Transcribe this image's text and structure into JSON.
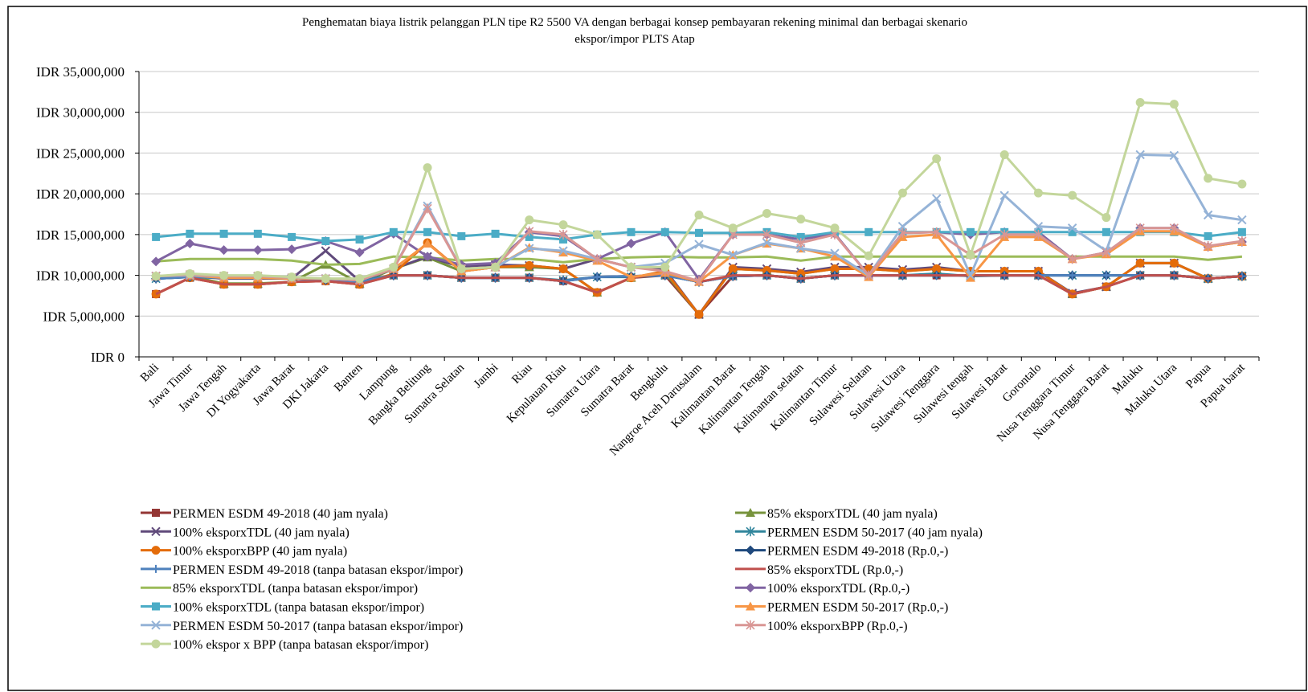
{
  "chart_data": {
    "type": "line",
    "title": [
      "Penghematan  biaya  listrik  pelanggan  PLN  tipe  R2  5500 VA dengan  berbagai  konsep pembayaran  rekening  minimal  dan berbagai  skenario",
      "ekspor/impor  PLTS Atap"
    ],
    "categories": [
      "Bali",
      "Jawa Timur",
      "Jawa Tengah",
      "DI Yogyakarta",
      "Jawa Barat",
      "DKI Jakarta",
      "Banten",
      "Lampung",
      "Bangka Belitung",
      "Sumatra Selatan",
      "Jambi",
      "Riau",
      "Kepulauan Riau",
      "Sumatra Utara",
      "Sumatra Barat",
      "Bengkulu",
      "Nangroe Aceh Darusalam",
      "Kalimantan Barat",
      "Kalimantan Tengah",
      "Kalimantan selatan",
      "Kalimantan Timur",
      "Sulawesi Selatan",
      "Sulawesi Utara",
      "Sulawesi Tenggara",
      "Sulawesi tengah",
      "Sulawesi Barat",
      "Gorontalo",
      "Nusa Tenggara Timur",
      "Nusa Tenggara Barat",
      "Maluku",
      "Maluku Utara",
      "Papua",
      "Papua barat"
    ],
    "ylim": [
      0,
      35000000
    ],
    "yticks": [
      {
        "value": 0,
        "label": "IDR 0"
      },
      {
        "value": 5000000,
        "label": "IDR 5,000,000"
      },
      {
        "value": 10000000,
        "label": "IDR 10,000,000"
      },
      {
        "value": 15000000,
        "label": "IDR 15,000,000"
      },
      {
        "value": 20000000,
        "label": "IDR 20,000,000"
      },
      {
        "value": 25000000,
        "label": "IDR 25,000,000"
      },
      {
        "value": 30000000,
        "label": "IDR 30,000,000"
      },
      {
        "value": 35000000,
        "label": "IDR 35,000,000"
      }
    ],
    "grid": true,
    "legend": "bottom",
    "series": [
      {
        "name": "PERMEN ESDM 49-2018 (40 jam nyala)",
        "color": "#943634",
        "marker": "square",
        "values": [
          7700000.0,
          9700000.0,
          8900000.0,
          8900000.0,
          9200000.0,
          9300000.0,
          8900000.0,
          10000000.0,
          10000000.0,
          9700000.0,
          9700000.0,
          9700000.0,
          9300000.0,
          7900000.0,
          9700000.0,
          10000000.0,
          5200000.0,
          9900000.0,
          10000000.0,
          9600000.0,
          10000000.0,
          10000000.0,
          10000000.0,
          10000000.0,
          10000000.0,
          10000000.0,
          10000000.0,
          7700000.0,
          8600000.0,
          10000000.0,
          10000000.0,
          9600000.0,
          9900000.0
        ]
      },
      {
        "name": "85% eksporxTDL (40 jam nyala)",
        "color": "#77933c",
        "marker": "triangle",
        "values": [
          9900000.0,
          9900000.0,
          9000000.0,
          9000000.0,
          9200000.0,
          11300000.0,
          9000000.0,
          10800000.0,
          12200000.0,
          10500000.0,
          11000000.0,
          11000000.0,
          10800000.0,
          7900000.0,
          9700000.0,
          10300000.0,
          5200000.0,
          10800000.0,
          10600000.0,
          10200000.0,
          10800000.0,
          10800000.0,
          10500000.0,
          10800000.0,
          10500000.0,
          10500000.0,
          10500000.0,
          7700000.0,
          8600000.0,
          11500000.0,
          11500000.0,
          9600000.0,
          9900000.0
        ]
      },
      {
        "name": "100% eksporxTDL (40 jam nyala)",
        "color": "#604a7b",
        "marker": "x",
        "values": [
          9900000.0,
          9900000.0,
          9600000.0,
          9600000.0,
          9600000.0,
          13000000.0,
          9300000.0,
          10800000.0,
          12300000.0,
          11000000.0,
          11300000.0,
          11200000.0,
          10800000.0,
          12000000.0,
          11000000.0,
          10700000.0,
          5200000.0,
          11000000.0,
          10800000.0,
          10400000.0,
          11000000.0,
          11000000.0,
          10700000.0,
          11000000.0,
          10500000.0,
          10500000.0,
          10500000.0,
          7800000.0,
          8600000.0,
          11500000.0,
          11500000.0,
          9600000.0,
          9900000.0
        ]
      },
      {
        "name": "PERMEN ESDM 50-2017 (40 jam nyala)",
        "color": "#31859c",
        "marker": "star",
        "values": [
          9600000.0,
          9800000.0,
          9700000.0,
          9700000.0,
          9600000.0,
          9600000.0,
          9400000.0,
          10000000.0,
          10000000.0,
          9700000.0,
          9700000.0,
          9700000.0,
          9400000.0,
          9800000.0,
          9800000.0,
          10000000.0,
          9200000.0,
          9900000.0,
          10000000.0,
          9600000.0,
          10000000.0,
          10000000.0,
          10000000.0,
          10200000.0,
          9900000.0,
          10000000.0,
          10000000.0,
          10000000.0,
          10000000.0,
          10000000.0,
          10000000.0,
          9600000.0,
          9900000.0
        ]
      },
      {
        "name": "100% eksporxBPP (40 jam nyala)",
        "color": "#e46c0a",
        "marker": "circle",
        "values": [
          7700000.0,
          9700000.0,
          8900000.0,
          8900000.0,
          9200000.0,
          9300000.0,
          8900000.0,
          10200000.0,
          14000000.0,
          10500000.0,
          11000000.0,
          11200000.0,
          10800000.0,
          7900000.0,
          9700000.0,
          10500000.0,
          5200000.0,
          10800000.0,
          10600000.0,
          10200000.0,
          10800000.0,
          10800000.0,
          10500000.0,
          10800000.0,
          10500000.0,
          10500000.0,
          10500000.0,
          7700000.0,
          8600000.0,
          11500000.0,
          11500000.0,
          9600000.0,
          9900000.0
        ]
      },
      {
        "name": "PERMEN ESDM 49-2018 (Rp.0,-)",
        "color": "#1f497d",
        "marker": "diamond",
        "values": [
          9600000.0,
          9800000.0,
          9700000.0,
          9700000.0,
          9600000.0,
          9400000.0,
          9200000.0,
          10000000.0,
          10000000.0,
          9700000.0,
          9700000.0,
          9700000.0,
          9300000.0,
          9800000.0,
          9900000.0,
          10000000.0,
          9200000.0,
          9900000.0,
          10000000.0,
          9600000.0,
          10000000.0,
          10000000.0,
          10000000.0,
          10000000.0,
          10000000.0,
          10000000.0,
          10000000.0,
          10000000.0,
          10000000.0,
          10000000.0,
          10000000.0,
          9600000.0,
          9900000.0
        ]
      },
      {
        "name": "PERMEN ESDM 49-2018 (tanpa batasan ekspor/impor)",
        "color": "#4f81bd",
        "marker": "plus",
        "values": [
          9600000.0,
          9800000.0,
          9700000.0,
          9700000.0,
          9600000.0,
          9400000.0,
          9200000.0,
          10000000.0,
          10000000.0,
          9700000.0,
          9700000.0,
          9700000.0,
          9300000.0,
          9800000.0,
          9900000.0,
          10000000.0,
          9200000.0,
          9900000.0,
          10000000.0,
          9600000.0,
          10000000.0,
          10000000.0,
          10000000.0,
          10000000.0,
          10000000.0,
          10000000.0,
          10000000.0,
          10000000.0,
          10000000.0,
          10000000.0,
          10000000.0,
          9600000.0,
          9900000.0
        ]
      },
      {
        "name": "85% eksporxTDL (Rp.0,-)",
        "color": "#c0504d",
        "marker": "none",
        "values": [
          7700000.0,
          9700000.0,
          8900000.0,
          8900000.0,
          9200000.0,
          9300000.0,
          8900000.0,
          10000000.0,
          10000000.0,
          9700000.0,
          9700000.0,
          9700000.0,
          9300000.0,
          7900000.0,
          9700000.0,
          10300000.0,
          9200000.0,
          10000000.0,
          10000000.0,
          9600000.0,
          10000000.0,
          10000000.0,
          10000000.0,
          10000000.0,
          10000000.0,
          10000000.0,
          10000000.0,
          7700000.0,
          8600000.0,
          10000000.0,
          10000000.0,
          9600000.0,
          9900000.0
        ]
      },
      {
        "name": "85% eksporxTDL (tanpa batasan ekspor/impor)",
        "color": "#9bbb59",
        "marker": "none",
        "values": [
          11700000.0,
          12000000.0,
          12000000.0,
          12000000.0,
          11800000.0,
          11300000.0,
          11400000.0,
          12300000.0,
          12200000.0,
          11800000.0,
          12000000.0,
          12000000.0,
          11600000.0,
          12000000.0,
          12200000.0,
          12300000.0,
          12200000.0,
          12200000.0,
          12300000.0,
          11800000.0,
          12300000.0,
          12300000.0,
          12300000.0,
          12300000.0,
          12300000.0,
          12300000.0,
          12300000.0,
          12300000.0,
          12300000.0,
          12300000.0,
          12300000.0,
          11900000.0,
          12300000.0
        ]
      },
      {
        "name": "100% eksporxTDL (Rp.0,-)",
        "color": "#8064a2",
        "marker": "diamond",
        "values": [
          11700000.0,
          13900000.0,
          13100000.0,
          13100000.0,
          13200000.0,
          14200000.0,
          12800000.0,
          15100000.0,
          12300000.0,
          11300000.0,
          11500000.0,
          15300000.0,
          14800000.0,
          12000000.0,
          13900000.0,
          15300000.0,
          9500000.0,
          15000000.0,
          15000000.0,
          14400000.0,
          15100000.0,
          10000000.0,
          15200000.0,
          15300000.0,
          15000000.0,
          15300000.0,
          15300000.0,
          12000000.0,
          12800000.0,
          15800000.0,
          15800000.0,
          13500000.0,
          14100000.0
        ]
      },
      {
        "name": "100% eksporxTDL (tanpa batasan ekspor/impor)",
        "color": "#4bacc6",
        "marker": "square",
        "values": [
          14700000.0,
          15100000.0,
          15100000.0,
          15100000.0,
          14700000.0,
          14200000.0,
          14400000.0,
          15300000.0,
          15300000.0,
          14800000.0,
          15100000.0,
          14700000.0,
          14400000.0,
          15000000.0,
          15300000.0,
          15300000.0,
          15200000.0,
          15200000.0,
          15300000.0,
          14700000.0,
          15300000.0,
          15300000.0,
          15300000.0,
          15300000.0,
          15300000.0,
          15300000.0,
          15300000.0,
          15300000.0,
          15300000.0,
          15300000.0,
          15300000.0,
          14800000.0,
          15300000.0
        ]
      },
      {
        "name": "PERMEN ESDM 50-2017 (Rp.0,-)",
        "color": "#f79646",
        "marker": "triangle",
        "values": [
          9900000.0,
          10000000.0,
          9700000.0,
          9700000.0,
          9600000.0,
          9600000.0,
          9400000.0,
          10800000.0,
          13900000.0,
          10500000.0,
          11000000.0,
          13400000.0,
          12800000.0,
          11800000.0,
          9800000.0,
          10300000.0,
          9200000.0,
          12500000.0,
          13900000.0,
          13300000.0,
          12300000.0,
          9800000.0,
          14700000.0,
          15000000.0,
          9700000.0,
          14700000.0,
          14700000.0,
          12000000.0,
          12600000.0,
          15400000.0,
          15400000.0,
          13500000.0,
          14100000.0
        ]
      },
      {
        "name": "PERMEN ESDM 50-2017 (tanpa batasan ekspor/impor)",
        "color": "#95b3d7",
        "marker": "x",
        "values": [
          9900000.0,
          10000000.0,
          9900000.0,
          9900000.0,
          9700000.0,
          9600000.0,
          9400000.0,
          10800000.0,
          18500000.0,
          10800000.0,
          11000000.0,
          13300000.0,
          13000000.0,
          12000000.0,
          11000000.0,
          11500000.0,
          13800000.0,
          12500000.0,
          14000000.0,
          13300000.0,
          12700000.0,
          10000000.0,
          16000000.0,
          19400000.0,
          10000000.0,
          19800000.0,
          16000000.0,
          15800000.0,
          13000000.0,
          24800000.0,
          24700000.0,
          17400000.0,
          16800000.0
        ]
      },
      {
        "name": "100% eksporxBPP (Rp.0,-)",
        "color": "#d99694",
        "marker": "star",
        "values": [
          9900000.0,
          10100000.0,
          9900000.0,
          9900000.0,
          9700000.0,
          9600000.0,
          9400000.0,
          10800000.0,
          18200000.0,
          10800000.0,
          11000000.0,
          15400000.0,
          15000000.0,
          12000000.0,
          11000000.0,
          10500000.0,
          9300000.0,
          15000000.0,
          15000000.0,
          14000000.0,
          15000000.0,
          10000000.0,
          15200000.0,
          15300000.0,
          12500000.0,
          15000000.0,
          15000000.0,
          12000000.0,
          12800000.0,
          15800000.0,
          15800000.0,
          13600000.0,
          14200000.0
        ]
      },
      {
        "name": "100% ekspor x BPP (tanpa batasan ekspor/impor)",
        "color": "#c3d69b",
        "marker": "circle",
        "values": [
          9900000.0,
          10200000.0,
          10000000.0,
          10000000.0,
          9800000.0,
          9600000.0,
          9600000.0,
          11000000.0,
          23200000.0,
          10800000.0,
          11000000.0,
          16800000.0,
          16200000.0,
          15000000.0,
          11000000.0,
          11000000.0,
          17400000.0,
          15800000.0,
          17600000.0,
          16900000.0,
          15800000.0,
          12400000.0,
          20100000.0,
          24300000.0,
          12500000.0,
          24800000.0,
          20100000.0,
          19800000.0,
          17100000.0,
          31200000.0,
          31000000.0,
          21900000.0,
          21200000.0
        ]
      }
    ]
  }
}
